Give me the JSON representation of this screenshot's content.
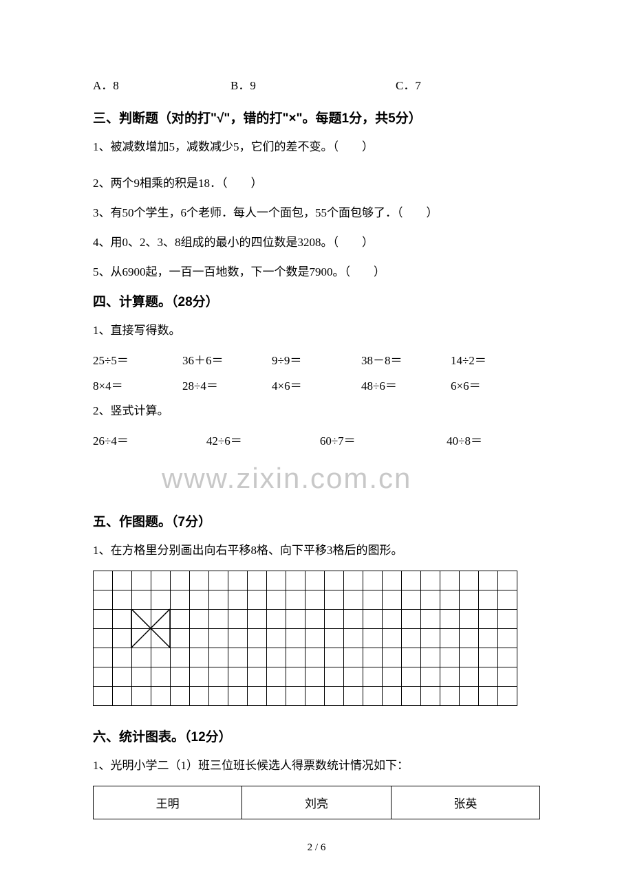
{
  "choices": {
    "a": "A．8",
    "b": "B．9",
    "c": "C．7"
  },
  "section3": {
    "header": "三、判断题（对的打\"√\"，错的打\"×\"。每题1分，共5分）",
    "q1": "1、被减数增加5，减数减少5，它们的差不变。（　　）",
    "q2": "2、两个9相乘的积是18．（　　）",
    "q3": "3、有50个学生，6个老师．每人一个面包，55个面包够了．（　　）",
    "q4": "4、用0、2、3、8组成的最小的四位数是3208。（　　）",
    "q5": "5、从6900起，一百一百地数，下一个数是7900。（　　）"
  },
  "section4": {
    "header": "四、计算题。（28分）",
    "q1_label": "1、直接写得数。",
    "row1": {
      "c1": "25÷5＝",
      "c2": "36＋6＝",
      "c3": "9÷9＝",
      "c4": "38－8＝",
      "c5": "14÷2＝"
    },
    "row2": {
      "c1": "8×4＝",
      "c2": "28÷4＝",
      "c3": "4×6＝",
      "c4": "48÷6＝",
      "c5": "6×6＝"
    },
    "q2_label": "2、竖式计算。",
    "vrow": {
      "c1": "26÷4＝",
      "c2": "42÷6＝",
      "c3": "60÷7＝",
      "c4": "40÷8＝"
    }
  },
  "watermark": "www.zixin.com.cn",
  "section5": {
    "header": "五、作图题。（7分）",
    "q1": "1、在方格里分别画出向右平移8格、向下平移3格后的图形。",
    "grid": {
      "rows": 7,
      "cols": 22,
      "cell_size": 28,
      "border_color": "#000000",
      "shape": {
        "points": [
          [
            2,
            2
          ],
          [
            4,
            4
          ],
          [
            2,
            4
          ],
          [
            4,
            2
          ]
        ],
        "lines": [
          {
            "from": [
              2,
              2
            ],
            "to": [
              4,
              4
            ]
          },
          {
            "from": [
              2,
              4
            ],
            "to": [
              4,
              2
            ]
          },
          {
            "from": [
              2,
              2
            ],
            "to": [
              2,
              4
            ]
          },
          {
            "from": [
              4,
              2
            ],
            "to": [
              4,
              4
            ]
          }
        ],
        "stroke": "#000000",
        "stroke_width": 1.5
      }
    }
  },
  "section6": {
    "header": "六、统计图表。（12分）",
    "q1": "1、光明小学二（1）班三位班长候选人得票数统计情况如下：",
    "table": {
      "cols": [
        "王明",
        "刘亮",
        "张英"
      ]
    }
  },
  "page_num": "2 / 6"
}
